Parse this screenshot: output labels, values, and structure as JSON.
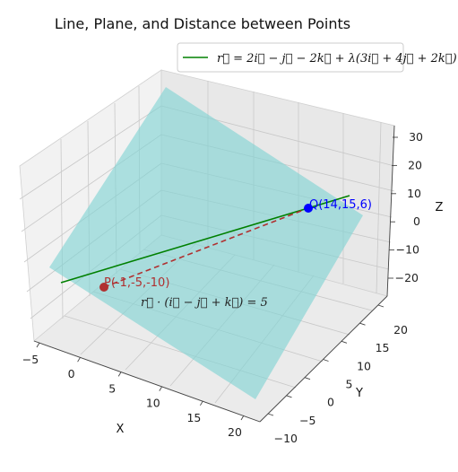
{
  "chart_data": {
    "type": "3d-line-plane",
    "title": "Line, Plane, and Distance between Points",
    "xlabel": "X",
    "ylabel": "Y",
    "zlabel": "Z",
    "x_ticks": [
      "−5",
      "0",
      "5",
      "10",
      "15",
      "20"
    ],
    "y_ticks": [
      "−10",
      "−5",
      "0",
      "5",
      "10",
      "15",
      "20"
    ],
    "z_ticks": [
      "−20",
      "−10",
      "0",
      "10",
      "20",
      "30"
    ],
    "legend": {
      "label": "r⃗ = 2i⃗ − j⃗ − 2k⃗ + λ(3i⃗ + 4j⃗ + 2k⃗)",
      "placement": "top-right",
      "color": "#008000"
    },
    "line": {
      "name": "r⃗ = 2i⃗ − j⃗ − 2k⃗ + λ(3i⃗ + 4j⃗ + 2k⃗)",
      "point": [
        2,
        -1,
        -2
      ],
      "direction": [
        3,
        4,
        2
      ],
      "color": "#008000"
    },
    "plane": {
      "label": "r⃗ · (i⃗ − j⃗ + k⃗) = 5",
      "normal": [
        1,
        -1,
        1
      ],
      "d": 5,
      "color": "#7fd4d4"
    },
    "points": [
      {
        "label": "P(-1,-5,-10)",
        "coords": [
          -1,
          -5,
          -10
        ],
        "color": "#b03030"
      },
      {
        "label": "Q(14,15,6)",
        "coords": [
          14,
          15,
          6
        ],
        "color": "#0000ff"
      }
    ],
    "distance_segment": {
      "from": "P",
      "to": "Q",
      "style": "dashed",
      "color": "#b03030"
    },
    "grid": true
  }
}
